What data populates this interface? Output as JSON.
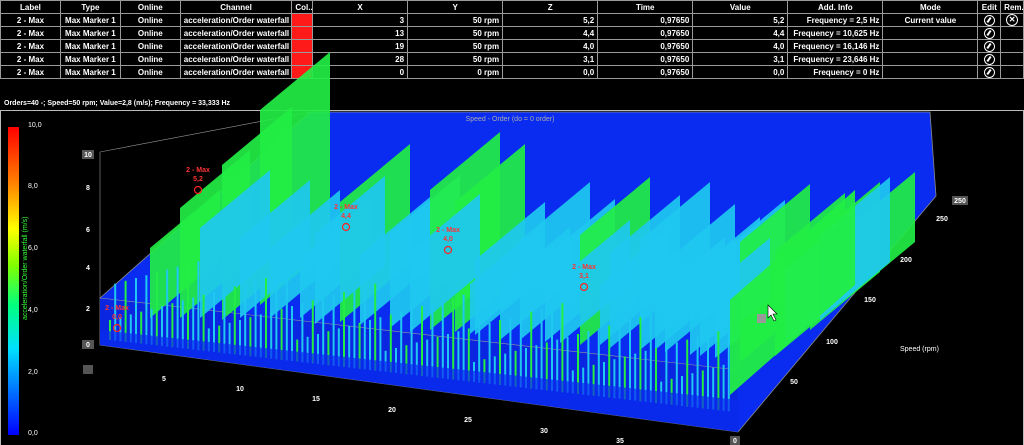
{
  "table": {
    "headers": [
      "Label",
      "Type",
      "Online",
      "Channel",
      "Col...",
      "X",
      "Y",
      "Z",
      "Time",
      "Value",
      "Add. Info",
      "Mode",
      "Edit",
      "Rem..."
    ],
    "rows": [
      {
        "label": "2 - Max",
        "type": "Max Marker 1",
        "online": "Online",
        "channel": "acceleration/Order waterfall",
        "x": "3",
        "y": "50 rpm",
        "z": "5,2",
        "time": "0,97650",
        "value": "5,2",
        "info": "Frequency = 2,5 Hz",
        "mode": "Current value"
      },
      {
        "label": "2 - Max",
        "type": "Max Marker 1",
        "online": "Online",
        "channel": "acceleration/Order waterfall",
        "x": "13",
        "y": "50 rpm",
        "z": "4,4",
        "time": "0,97650",
        "value": "4,4",
        "info": "Frequency = 10,625 Hz",
        "mode": ""
      },
      {
        "label": "2 - Max",
        "type": "Max Marker 1",
        "online": "Online",
        "channel": "acceleration/Order waterfall",
        "x": "19",
        "y": "50 rpm",
        "z": "4,0",
        "time": "0,97650",
        "value": "4,0",
        "info": "Frequency = 16,146 Hz",
        "mode": ""
      },
      {
        "label": "2 - Max",
        "type": "Max Marker 1",
        "online": "Online",
        "channel": "acceleration/Order waterfall",
        "x": "28",
        "y": "50 rpm",
        "z": "3,1",
        "time": "0,97650",
        "value": "3,1",
        "info": "Frequency = 23,646 Hz",
        "mode": ""
      },
      {
        "label": "2 - Max",
        "type": "Max Marker 1",
        "online": "Online",
        "channel": "acceleration/Order waterfall",
        "x": "0",
        "y": "0 rpm",
        "z": "0,0",
        "time": "0,97650",
        "value": "0,0",
        "info": "Frequency = 0 Hz",
        "mode": ""
      }
    ],
    "color_cell": "#ff1a1a"
  },
  "status_line": "Orders=40 -; Speed=50 rpm; Value=2,8  (m/s); Frequency = 33,333 Hz",
  "plot": {
    "title": "Speed - Order (do = 0 order)",
    "colorbar_title": "acceleration/Order waterfall (m/s)",
    "colorbar_ticks": [
      "10,0",
      "8,0",
      "6,0",
      "4,0",
      "2,0",
      "0,0"
    ],
    "z_ticks": [
      "10",
      "8",
      "6",
      "4",
      "2",
      "0"
    ],
    "x_ticks": [
      "5",
      "10",
      "15",
      "20",
      "25",
      "30",
      "35"
    ],
    "y_ticks": [
      "250",
      "200",
      "150",
      "100",
      "50",
      "0"
    ],
    "y_end_label": "250",
    "y_axis_label": "Speed (rpm)",
    "marker_label": "2 - Max",
    "markers": [
      {
        "value": "5,2"
      },
      {
        "value": "4,4"
      },
      {
        "value": "4,0"
      },
      {
        "value": "3,1"
      },
      {
        "value": "0,0"
      }
    ],
    "colors": {
      "floor": "#0a2cf0",
      "green": "#22ee44",
      "cyan": "#1ec8f0",
      "marker": "#ff2222"
    }
  }
}
